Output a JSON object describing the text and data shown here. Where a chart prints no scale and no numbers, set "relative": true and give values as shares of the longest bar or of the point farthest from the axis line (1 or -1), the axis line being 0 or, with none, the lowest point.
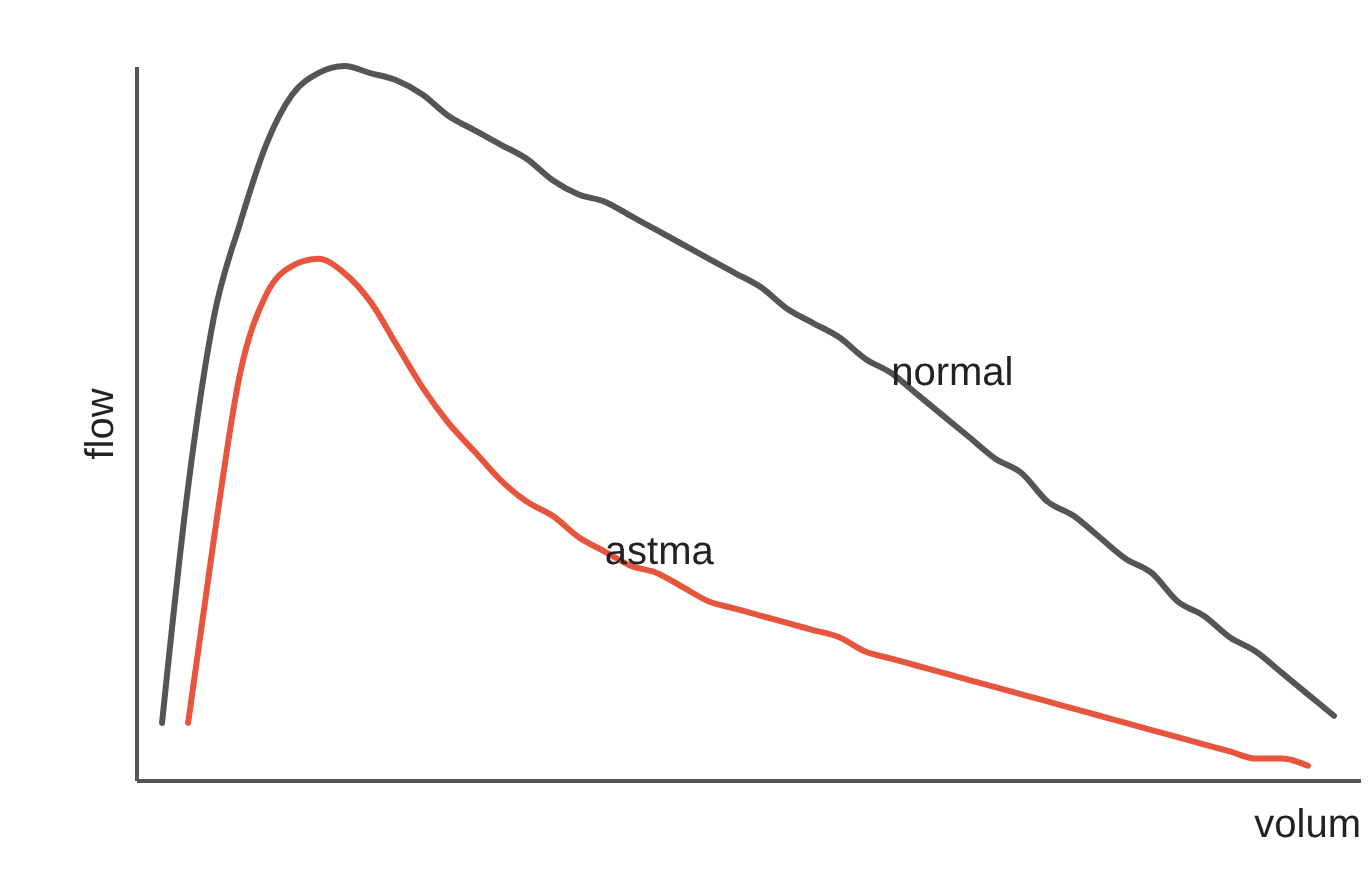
{
  "chart_data": {
    "type": "line",
    "xlabel": "volum",
    "ylabel": "flow",
    "relative": true,
    "categories": [
      null,
      null,
      null,
      null,
      null,
      null,
      null,
      null,
      null,
      null,
      null,
      null,
      null,
      null,
      null,
      null,
      null,
      null,
      null,
      null,
      null,
      null,
      null,
      null,
      null,
      null,
      null,
      null,
      null,
      null,
      null,
      null,
      null,
      null,
      null,
      null,
      null,
      null,
      null,
      null,
      null,
      null,
      null,
      null,
      null,
      null
    ],
    "series": [
      {
        "name": "normal",
        "color": "#555555",
        "values": [
          0.08,
          0.41,
          0.65,
          0.78,
          0.89,
          0.96,
          0.99,
          1,
          0.99,
          0.98,
          0.96,
          0.93,
          0.91,
          0.89,
          0.87,
          0.84,
          0.82,
          0.81,
          0.79,
          0.77,
          0.75,
          0.73,
          0.71,
          0.69,
          0.66,
          0.64,
          0.62,
          0.59,
          0.57,
          0.54,
          0.51,
          0.48,
          0.45,
          0.43,
          0.39,
          0.37,
          0.34,
          0.31,
          0.29,
          0.25,
          0.23,
          0.2,
          0.18,
          0.15,
          0.12,
          0.09
        ]
      },
      {
        "name": "astma",
        "color": "#e8553f",
        "values": [
          null,
          0.08,
          0.34,
          0.57,
          0.68,
          0.72,
          0.73,
          0.71,
          0.67,
          0.61,
          0.55,
          0.5,
          0.46,
          0.42,
          0.39,
          0.37,
          0.34,
          0.32,
          0.3,
          0.29,
          0.27,
          0.25,
          0.24,
          0.23,
          0.22,
          0.21,
          0.2,
          0.18,
          0.17,
          0.16,
          0.15,
          0.14,
          0.13,
          0.12,
          0.11,
          0.1,
          0.09,
          0.08,
          0.07,
          0.06,
          0.05,
          0.04,
          0.03,
          0.03,
          0.02,
          null
        ]
      }
    ]
  }
}
